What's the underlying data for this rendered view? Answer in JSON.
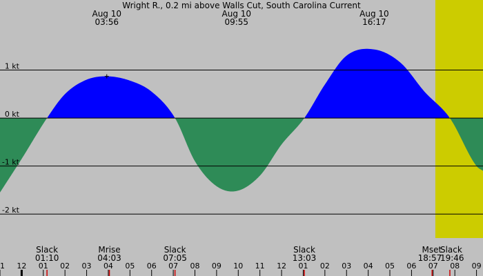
{
  "chart_data": {
    "type": "area",
    "title": "Wright R., 0.2 mi above Walls Cut, South Carolina Current",
    "ylabel": "",
    "xlabel": "",
    "ylim": [
      -2.5,
      2.46
    ],
    "xlim": [
      11.0,
      33.3
    ],
    "y_ticks": [
      {
        "value": 1,
        "label": "1 kt"
      },
      {
        "value": 0,
        "label": "0 kt"
      },
      {
        "value": -1,
        "label": "-1 kt"
      },
      {
        "value": -2,
        "label": "-2 kt"
      }
    ],
    "hour_ticks": [
      "11",
      "12",
      "01",
      "02",
      "03",
      "04",
      "05",
      "06",
      "07",
      "08",
      "09",
      "10",
      "11",
      "12",
      "01",
      "02",
      "03",
      "04",
      "05",
      "06",
      "07",
      "08",
      "09"
    ],
    "daylight": {
      "start": 31.1,
      "end": 42.8
    },
    "event_labels": [
      {
        "date": "Aug 10",
        "time": "03:56"
      },
      {
        "date": "Aug 10",
        "time": "09:55"
      },
      {
        "date": "Aug 10",
        "time": "16:17"
      }
    ],
    "bottom_events": [
      {
        "name": "Slack",
        "time": "01:10"
      },
      {
        "name": "Mrise",
        "time": "04:03"
      },
      {
        "name": "Slack",
        "time": "07:05"
      },
      {
        "name": "Slack",
        "time": "13:03"
      },
      {
        "name": "Mset",
        "time": "18:57"
      },
      {
        "name": "Slack",
        "time": "19:46"
      }
    ],
    "series": [
      {
        "x": [
          11.0,
          12.0,
          13.17,
          14.0,
          15.0,
          15.93,
          17.0,
          18.0,
          19.08,
          20.0,
          21.0,
          21.92,
          23.0,
          24.0,
          25.05,
          26.0,
          27.0,
          28.28,
          29.5,
          30.6,
          31.77,
          33.0,
          33.3
        ],
        "y": [
          -1.55,
          -0.85,
          0.0,
          0.5,
          0.8,
          0.87,
          0.78,
          0.55,
          0.0,
          -0.9,
          -1.42,
          -1.52,
          -1.2,
          -0.55,
          0.0,
          0.7,
          1.3,
          1.43,
          1.15,
          0.55,
          0.0,
          -1.0,
          -1.1
        ]
      }
    ],
    "colors": {
      "background": "#c0c0c0",
      "daylight": "#cccc00",
      "flood": "#0000ff",
      "ebb": "#2e8b57",
      "gridline": "#000000",
      "moon_marker": "#cc0000"
    }
  }
}
